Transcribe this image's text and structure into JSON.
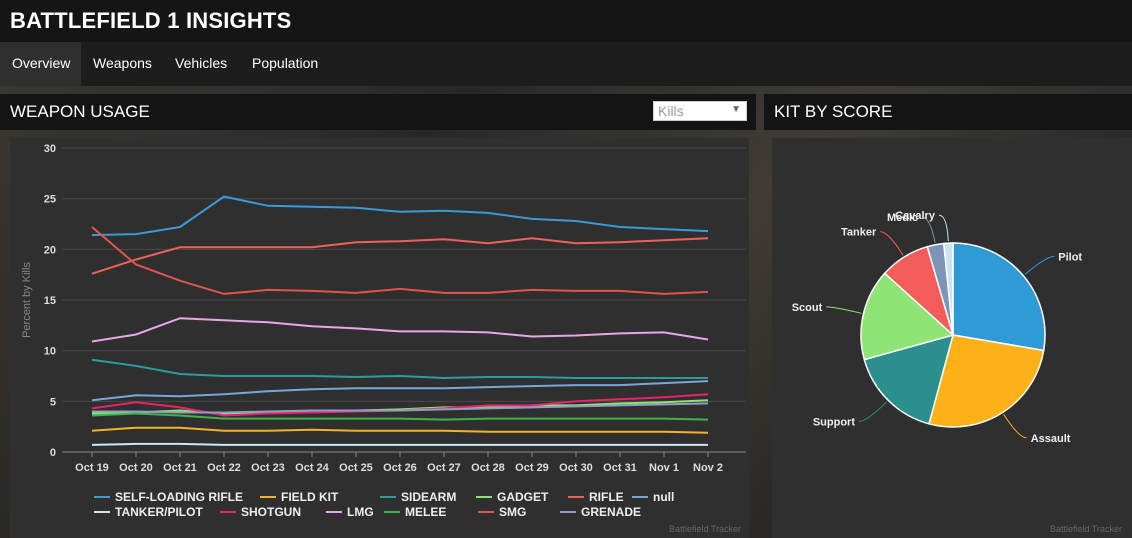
{
  "app": {
    "title": "BATTLEFIELD 1 INSIGHTS"
  },
  "tabs": [
    {
      "label": "Overview",
      "active": true
    },
    {
      "label": "Weapons",
      "active": false
    },
    {
      "label": "Vehicles",
      "active": false
    },
    {
      "label": "Population",
      "active": false
    }
  ],
  "weapon_panel": {
    "title": "WEAPON USAGE",
    "select_value": "Kills",
    "credit": "Battlefield Tracker"
  },
  "kit_panel": {
    "title": "KIT BY SCORE",
    "credit": "Battlefield Tracker"
  },
  "chart_data": [
    {
      "type": "line",
      "ylabel": "Percent by Kills",
      "ylim": [
        0,
        30
      ],
      "yticks": [
        0,
        5,
        10,
        15,
        20,
        25,
        30
      ],
      "grid": true,
      "legend_position": "bottom",
      "x": [
        "Oct 19",
        "Oct 20",
        "Oct 21",
        "Oct 22",
        "Oct 23",
        "Oct 24",
        "Oct 25",
        "Oct 26",
        "Oct 27",
        "Oct 28",
        "Oct 29",
        "Oct 30",
        "Oct 31",
        "Nov 1",
        "Nov 2"
      ],
      "series": [
        {
          "name": "SELF-LOADING RIFLE",
          "color": "#3a9ad9",
          "values": [
            21.4,
            21.5,
            22.2,
            25.2,
            24.3,
            24.2,
            24.1,
            23.7,
            23.8,
            23.6,
            23.0,
            22.8,
            22.2,
            22.0,
            21.8
          ]
        },
        {
          "name": "FIELD KIT",
          "color": "#f0b429",
          "values": [
            2.1,
            2.4,
            2.4,
            2.1,
            2.1,
            2.2,
            2.1,
            2.1,
            2.1,
            2.0,
            2.0,
            2.0,
            2.0,
            2.0,
            1.9
          ]
        },
        {
          "name": "SIDEARM",
          "color": "#2a9d9f",
          "values": [
            9.1,
            8.5,
            7.7,
            7.5,
            7.5,
            7.5,
            7.4,
            7.5,
            7.3,
            7.4,
            7.4,
            7.3,
            7.3,
            7.3,
            7.3
          ]
        },
        {
          "name": "GADGET",
          "color": "#8fe36b",
          "values": [
            3.8,
            3.9,
            4.1,
            3.8,
            3.9,
            4.0,
            4.1,
            4.2,
            4.4,
            4.4,
            4.6,
            4.6,
            4.8,
            4.9,
            5.1
          ]
        },
        {
          "name": "RIFLE",
          "color": "#f0605a",
          "values": [
            17.6,
            19.0,
            20.2,
            20.2,
            20.2,
            20.2,
            20.7,
            20.8,
            21.0,
            20.6,
            21.1,
            20.6,
            20.7,
            20.9,
            21.1
          ]
        },
        {
          "name": "null",
          "color": "#7aa6d9",
          "values": [
            5.1,
            5.6,
            5.5,
            5.7,
            6.0,
            6.2,
            6.3,
            6.3,
            6.3,
            6.4,
            6.5,
            6.6,
            6.6,
            6.8,
            7.0
          ]
        },
        {
          "name": "TANKER/PILOT",
          "color": "#cde8f5",
          "values": [
            0.7,
            0.8,
            0.8,
            0.7,
            0.7,
            0.7,
            0.7,
            0.7,
            0.7,
            0.7,
            0.7,
            0.7,
            0.7,
            0.7,
            0.7
          ]
        },
        {
          "name": "SHOTGUN",
          "color": "#e8236b",
          "values": [
            4.3,
            4.9,
            4.4,
            3.6,
            3.8,
            3.9,
            4.0,
            4.1,
            4.3,
            4.6,
            4.6,
            5.0,
            5.2,
            5.4,
            5.7
          ]
        },
        {
          "name": "LMG",
          "color": "#e9a6e6",
          "values": [
            10.9,
            11.6,
            13.2,
            13.0,
            12.8,
            12.4,
            12.2,
            11.9,
            11.9,
            11.8,
            11.4,
            11.5,
            11.7,
            11.8,
            11.1
          ]
        },
        {
          "name": "MELEE",
          "color": "#3fb549",
          "values": [
            3.6,
            3.8,
            3.6,
            3.3,
            3.3,
            3.3,
            3.3,
            3.3,
            3.2,
            3.3,
            3.3,
            3.3,
            3.3,
            3.3,
            3.2
          ]
        },
        {
          "name": "SMG",
          "color": "#e0564e",
          "values": [
            22.2,
            18.5,
            16.9,
            15.6,
            16.0,
            15.9,
            15.7,
            16.1,
            15.7,
            15.7,
            16.0,
            15.9,
            15.9,
            15.6,
            15.8
          ]
        },
        {
          "name": "GRENADE",
          "color": "#8d9ec9",
          "values": [
            4.0,
            4.0,
            3.9,
            3.9,
            4.0,
            4.1,
            4.1,
            4.1,
            4.2,
            4.3,
            4.4,
            4.5,
            4.6,
            4.7,
            4.8
          ]
        }
      ]
    },
    {
      "type": "pie",
      "slices": [
        {
          "label": "Pilot",
          "value": 27.7,
          "color": "#2e9bd6"
        },
        {
          "label": "Assault",
          "value": 26.5,
          "color": "#fbb117"
        },
        {
          "label": "Support",
          "value": 16.5,
          "color": "#2a8f8d"
        },
        {
          "label": "Scout",
          "value": 16.0,
          "color": "#8ee474"
        },
        {
          "label": "Tanker",
          "value": 8.8,
          "color": "#f45c5c"
        },
        {
          "label": "Medic",
          "value": 2.9,
          "color": "#7d94b8"
        },
        {
          "label": "Cavalry",
          "value": 1.6,
          "color": "#c8e3f3"
        }
      ]
    }
  ]
}
